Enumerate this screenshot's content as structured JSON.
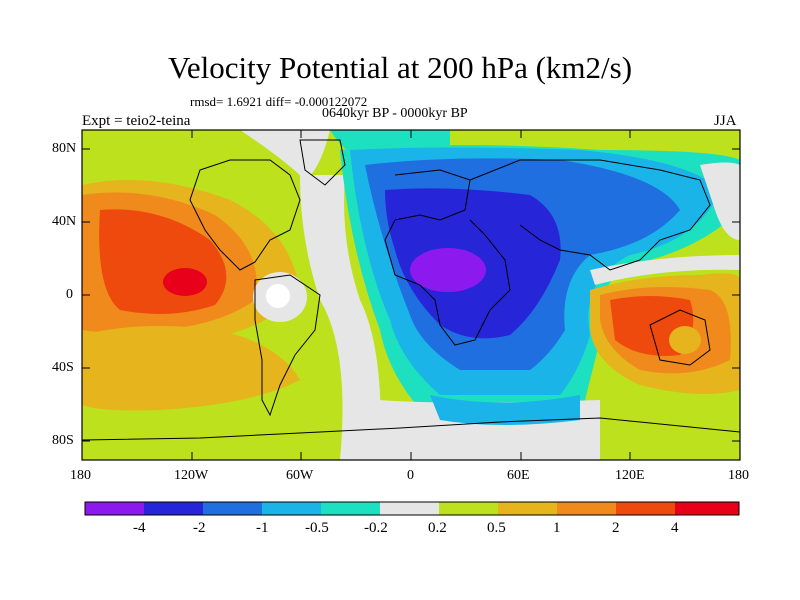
{
  "title": "Velocity Potential at 200 hPa (km2/s)",
  "stats": "rmsd= 1.6921 diff= -0.000122072",
  "period": "0640kyr BP - 0000kyr BP",
  "experiment": "Expt = teio2-teina",
  "season": "JJA",
  "y_axis_labels": [
    "80N",
    "40N",
    "0",
    "40S",
    "80S"
  ],
  "x_axis_labels": [
    "180",
    "120W",
    "60W",
    "0",
    "60E",
    "120E",
    "180"
  ],
  "colorbar": {
    "labels": [
      "-4",
      "-2",
      "-1",
      "-0.5",
      "-0.2",
      "0.2",
      "0.5",
      "1",
      "2",
      "4"
    ],
    "colors": [
      "#8c1aee",
      "#2626d8",
      "#1f6fe0",
      "#1ab4e8",
      "#1ce0c0",
      "#e6e6e6",
      "#bde11c",
      "#e6b41c",
      "#f08a1c",
      "#ee4a0e",
      "#e8001a"
    ]
  }
}
